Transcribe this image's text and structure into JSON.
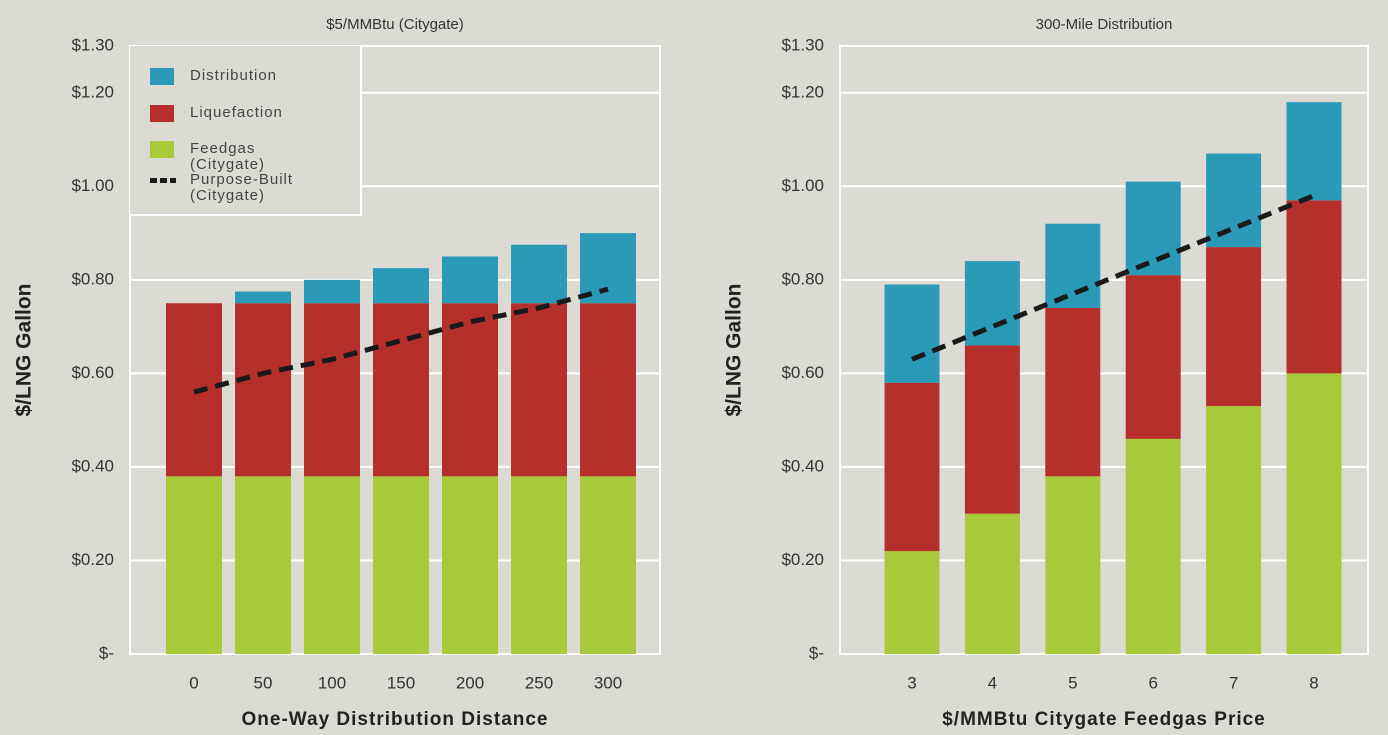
{
  "chart_data": [
    {
      "type": "bar",
      "stacked": true,
      "title": "$5/MMBtu (Citygate)",
      "x_label": "One-Way Distribution Distance",
      "y_label": "$/LNG Gallon",
      "categories": [
        "0",
        "50",
        "100",
        "150",
        "200",
        "250",
        "300"
      ],
      "series": [
        {
          "name": "Feedgas (Citygate)",
          "color": "#a8c93a",
          "values": [
            0.38,
            0.38,
            0.38,
            0.38,
            0.38,
            0.38,
            0.38
          ]
        },
        {
          "name": "Liquefaction",
          "color": "#b5302a",
          "values": [
            0.37,
            0.37,
            0.37,
            0.37,
            0.37,
            0.37,
            0.37
          ]
        },
        {
          "name": "Distribution",
          "color": "#2a9ab8",
          "values": [
            0,
            0.025,
            0.05,
            0.075,
            0.1,
            0.125,
            0.15
          ]
        },
        {
          "name": "Purpose-Built (Citygate)",
          "type": "line",
          "dashed": true,
          "color": "#1a1a1a",
          "values": [
            0.56,
            0.6,
            0.63,
            0.67,
            0.71,
            0.74,
            0.78
          ]
        }
      ],
      "ylim": [
        0,
        1.3
      ],
      "yticks": [
        {
          "value": 0,
          "label": "$-"
        },
        {
          "value": 0.2,
          "label": "$0.20"
        },
        {
          "value": 0.4,
          "label": "$0.40"
        },
        {
          "value": 0.6,
          "label": "$0.60"
        },
        {
          "value": 0.8,
          "label": "$0.80"
        },
        {
          "value": 1.0,
          "label": "$1.00"
        },
        {
          "value": 1.2,
          "label": "$1.20"
        },
        {
          "value": 1.3,
          "label": "$1.30"
        }
      ],
      "grid": true,
      "legend": "upper left"
    },
    {
      "type": "bar",
      "stacked": true,
      "title": "300-Mile Distribution",
      "x_label": "$/MMBtu Citygate Feedgas Price",
      "y_label": "$/LNG Gallon",
      "categories": [
        "3",
        "4",
        "5",
        "6",
        "7",
        "8"
      ],
      "series": [
        {
          "color": "#a8c93a",
          "values": [
            0.22,
            0.3,
            0.38,
            0.46,
            0.53,
            0.6
          ]
        },
        {
          "color": "#b5302a",
          "values": [
            0.36,
            0.36,
            0.36,
            0.35,
            0.34,
            0.37
          ]
        },
        {
          "color": "#2a9ab8",
          "values": [
            0.21,
            0.18,
            0.18,
            0.2,
            0.2,
            0.21
          ]
        },
        {
          "type": "line",
          "dashed": true,
          "color": "#1a1a1a",
          "values": [
            0.63,
            0.7,
            0.77,
            0.84,
            0.91,
            0.98
          ]
        }
      ],
      "ylim": [
        0,
        1.3
      ],
      "yticks": [
        {
          "value": 0,
          "label": "$-"
        },
        {
          "value": 0.2,
          "label": "$0.20"
        },
        {
          "value": 0.4,
          "label": "$0.40"
        },
        {
          "value": 0.6,
          "label": "$0.60"
        },
        {
          "value": 0.8,
          "label": "$0.80"
        },
        {
          "value": 1.0,
          "label": "$1.00"
        },
        {
          "value": 1.2,
          "label": "$1.20"
        },
        {
          "value": 1.3,
          "label": "$1.30"
        }
      ],
      "grid": true
    }
  ]
}
